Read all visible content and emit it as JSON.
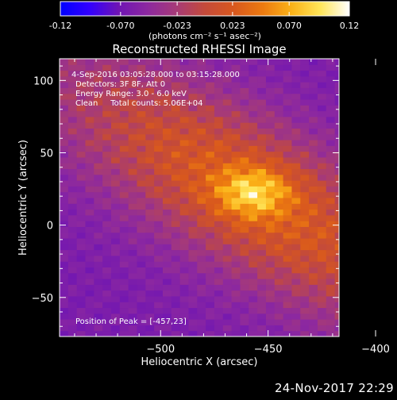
{
  "chart_data": {
    "type": "heatmap",
    "title": "Reconstructed RHESSI Image",
    "xlabel": "Heliocentric X (arcsec)",
    "ylabel": "Heliocentric Y (arcsec)",
    "xlim": [
      -547,
      -417
    ],
    "ylim": [
      -77,
      115
    ],
    "x_ticks": [
      -500,
      -450,
      -400
    ],
    "y_ticks": [
      100,
      50,
      0,
      -50
    ],
    "colorbar": {
      "min": -0.12,
      "max": 0.12,
      "tick_values": [
        -0.12,
        -0.07,
        -0.023,
        0.023,
        0.07,
        0.12
      ],
      "tick_labels": [
        "-0.12",
        "-0.070",
        "-0.023",
        "0.023",
        "0.070",
        "0.12"
      ],
      "unit_label": "(photons cm⁻² s⁻¹ asec⁻²)"
    },
    "annotations": [
      "4-Sep-2016 03:05:28.000 to 03:15:28.000",
      "Detectors: 3F 8F, Att 0",
      "Energy Range: 3.0 - 6.0 keV",
      "Clean     Total counts: 5.06E+04"
    ],
    "peak_label": "Position of Peak = [-457,23]",
    "peak": {
      "x": -457,
      "y": 23,
      "value": 0.12
    },
    "source": {
      "description": "elongated bright source oriented along the NW-SE diagonal",
      "center_x": -457,
      "center_y": 20,
      "axis_angle_deg": -45,
      "major_sigma_arcsec": 85,
      "minor_sigma_arcsec": 30,
      "core_sigma_arcsec": 12
    },
    "background_value": -0.05,
    "grid": false,
    "legend": "none"
  },
  "footer": {
    "timestamp": "24-Nov-2017 22:29"
  },
  "colors": {
    "background": "#000000",
    "text": "#ffffff",
    "colormap": [
      "#0000ff",
      "#3200ff",
      "#6e14b4",
      "#8c28a0",
      "#a63a78",
      "#c44a3a",
      "#d8581e",
      "#ec7a10",
      "#fbb218",
      "#ffe65a",
      "#ffffff"
    ]
  }
}
